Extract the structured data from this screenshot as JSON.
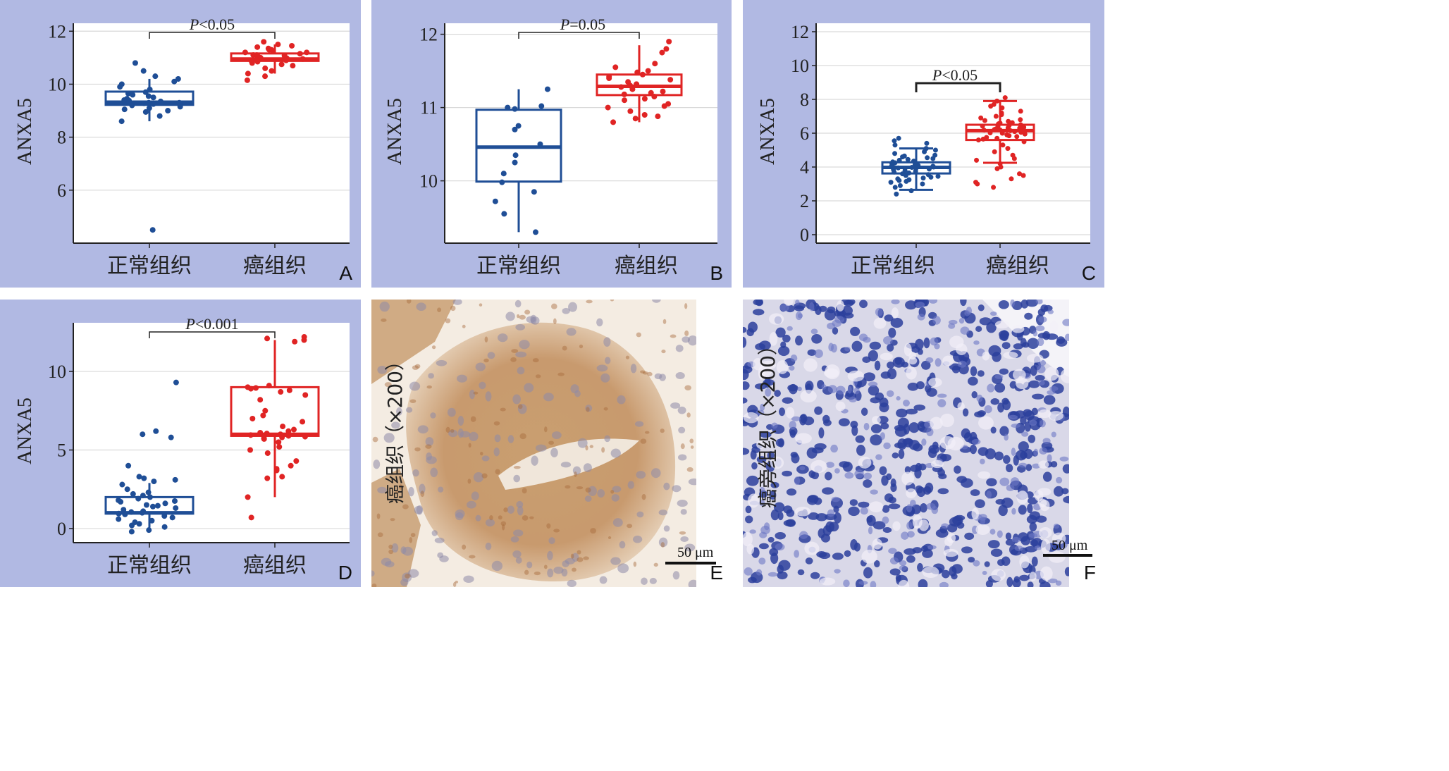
{
  "colors": {
    "normal": "#1f4e96",
    "cancer": "#e02424",
    "panel_bg": "#b1b9e3"
  },
  "chart_data": [
    {
      "id": "A",
      "type": "box",
      "ylabel": "ANXA5",
      "ylim": [
        4,
        12.3
      ],
      "yticks": [
        6,
        8,
        10,
        12
      ],
      "categories": [
        "正常组织",
        "癌组织"
      ],
      "p_text": "<0.05",
      "boxes": [
        {
          "min": 8.6,
          "q1": 9.22,
          "median": 9.32,
          "q3": 9.72,
          "max": 10.2
        },
        {
          "min": 10.4,
          "q1": 10.88,
          "median": 10.95,
          "q3": 11.16,
          "max": 11.5
        }
      ],
      "points": [
        [
          9.3,
          9.25,
          9.4,
          9.6,
          9.7,
          9.8,
          10.0,
          10.1,
          10.3,
          10.5,
          10.8,
          9.0,
          8.8,
          8.6,
          9.1,
          9.2,
          9.35,
          9.45,
          9.5,
          9.55,
          9.65,
          9.9,
          10.2,
          9.15,
          9.05,
          8.95,
          9.3,
          9.38,
          9.28,
          4.5
        ],
        [
          10.9,
          11.0,
          11.1,
          11.2,
          11.3,
          11.4,
          11.5,
          11.6,
          10.8,
          10.7,
          10.6,
          10.3,
          10.15,
          10.95,
          11.05,
          11.15,
          11.25,
          10.85,
          10.75,
          11.35,
          11.45,
          11.0,
          10.9,
          11.1,
          10.5,
          10.4,
          11.2,
          11.3,
          10.98,
          11.08
        ]
      ]
    },
    {
      "id": "B",
      "type": "box",
      "ylabel": "ANXA5",
      "ylim": [
        9.15,
        12.15
      ],
      "yticks": [
        10,
        11,
        12
      ],
      "categories": [
        "正常组织",
        "癌组织"
      ],
      "p_text": "=0.05",
      "boxes": [
        {
          "min": 9.3,
          "q1": 9.99,
          "median": 10.46,
          "q3": 10.97,
          "max": 11.25
        },
        {
          "min": 10.8,
          "q1": 11.17,
          "median": 11.29,
          "q3": 11.45,
          "max": 11.85
        }
      ],
      "points": [
        [
          11.25,
          11.0,
          10.98,
          10.75,
          10.7,
          10.5,
          10.35,
          10.25,
          10.1,
          9.98,
          9.85,
          9.72,
          9.55,
          9.3,
          11.02
        ],
        [
          11.9,
          11.8,
          11.75,
          11.6,
          11.5,
          11.45,
          11.4,
          11.35,
          11.3,
          11.28,
          11.25,
          11.2,
          11.15,
          11.1,
          11.05,
          11.0,
          10.95,
          10.9,
          10.85,
          10.8,
          11.38,
          11.32,
          11.22,
          11.12,
          11.48,
          11.55,
          10.88,
          11.02,
          11.18,
          11.42
        ]
      ]
    },
    {
      "id": "C",
      "type": "box",
      "ylabel": "ANXA5",
      "ylim": [
        -0.5,
        12.5
      ],
      "yticks": [
        0,
        2,
        4,
        6,
        8,
        10,
        12
      ],
      "categories": [
        "正常组织",
        "癌组织"
      ],
      "p_text": "<0.05",
      "boxes": [
        {
          "min": 2.65,
          "q1": 3.62,
          "median": 3.98,
          "q3": 4.28,
          "max": 5.1
        },
        {
          "min": 4.25,
          "q1": 5.6,
          "median": 6.15,
          "q3": 6.5,
          "max": 7.9
        }
      ],
      "points": [
        [
          5.7,
          5.4,
          5.1,
          4.9,
          4.7,
          4.6,
          4.5,
          4.4,
          4.3,
          4.25,
          4.2,
          4.1,
          4.05,
          4.0,
          3.95,
          3.9,
          3.85,
          3.8,
          3.75,
          3.7,
          3.65,
          3.6,
          3.5,
          3.4,
          3.3,
          3.2,
          3.1,
          3.0,
          2.8,
          2.6,
          2.4,
          4.15,
          3.98,
          4.02,
          3.88,
          4.35,
          3.55,
          4.45,
          3.45,
          4.55,
          3.35,
          4.65,
          3.25,
          4.8,
          5.0,
          5.3,
          5.55,
          2.9,
          3.15,
          4.12
        ],
        [
          8.1,
          7.9,
          7.7,
          7.5,
          7.3,
          7.1,
          7.0,
          6.9,
          6.8,
          6.7,
          6.6,
          6.5,
          6.45,
          6.4,
          6.35,
          6.3,
          6.25,
          6.2,
          6.15,
          6.1,
          6.05,
          6.0,
          5.95,
          5.9,
          5.8,
          5.7,
          5.6,
          5.5,
          5.3,
          5.1,
          4.9,
          4.7,
          4.5,
          4.2,
          3.9,
          3.6,
          3.3,
          3.0,
          2.8,
          6.55,
          6.12,
          6.28,
          6.42,
          5.85,
          5.65,
          6.75,
          7.2,
          7.6,
          3.1,
          3.5,
          4.0,
          4.4,
          6.22,
          6.18,
          6.32,
          5.75,
          6.62,
          6.02
        ]
      ]
    },
    {
      "id": "D",
      "type": "box",
      "ylabel": "ANXA5",
      "ylim": [
        -0.9,
        13.1
      ],
      "yticks": [
        0,
        5,
        10
      ],
      "categories": [
        "正常组织",
        "癌组织"
      ],
      "p_text": "<0.001",
      "boxes": [
        {
          "min": 0.05,
          "q1": 0.95,
          "median": 1.0,
          "q3": 2.0,
          "max": 2.9
        },
        {
          "min": 2.0,
          "q1": 5.9,
          "median": 6.0,
          "q3": 9.0,
          "max": 12.0
        }
      ],
      "points": [
        [
          9.3,
          6.2,
          6.0,
          5.8,
          4.0,
          3.3,
          3.2,
          3.1,
          3.0,
          2.8,
          2.5,
          2.3,
          2.2,
          2.1,
          2.0,
          1.9,
          1.8,
          1.7,
          1.6,
          1.5,
          1.4,
          1.3,
          1.2,
          1.1,
          1.05,
          1.0,
          0.95,
          0.9,
          0.8,
          0.7,
          0.6,
          0.5,
          0.4,
          0.3,
          0.2,
          0.1,
          -0.1,
          -0.2,
          1.45,
          1.75
        ],
        [
          12.2,
          12.1,
          12.0,
          11.9,
          9.1,
          9.0,
          8.95,
          8.9,
          8.8,
          8.7,
          8.5,
          8.2,
          7.5,
          7.2,
          7.0,
          6.8,
          6.5,
          6.3,
          6.2,
          6.1,
          6.0,
          5.95,
          5.9,
          5.85,
          5.8,
          5.75,
          5.7,
          5.5,
          5.2,
          5.0,
          4.8,
          4.3,
          4.0,
          3.8,
          3.7,
          3.3,
          3.2,
          2.0,
          0.7,
          6.05
        ]
      ]
    }
  ],
  "micrographs": [
    {
      "id": "E",
      "side_label": "癌组织（×200）",
      "scale_label": "50 μm"
    },
    {
      "id": "F",
      "side_label": "癌旁组织（×200）",
      "scale_label": "50 μm"
    }
  ]
}
